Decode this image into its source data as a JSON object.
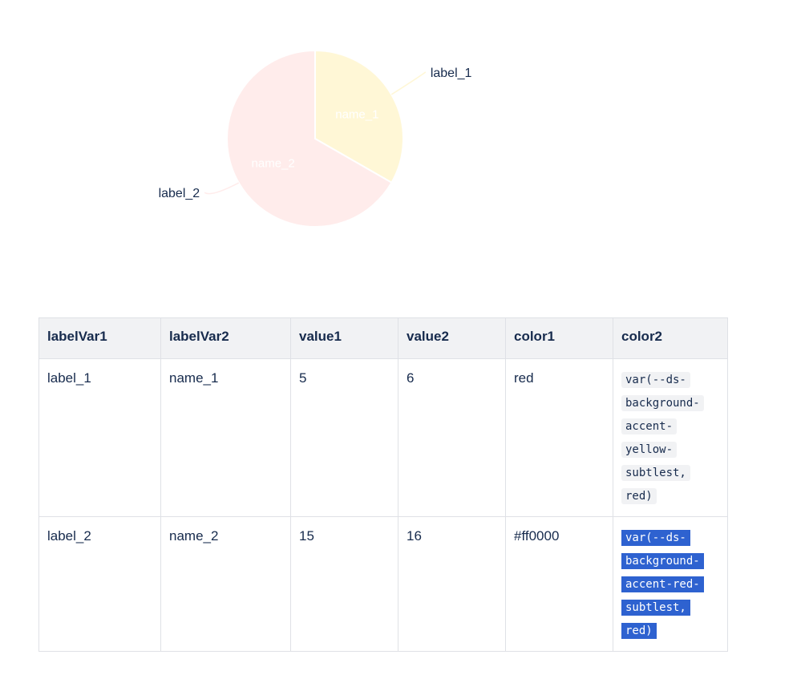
{
  "chart_data": {
    "type": "pie",
    "slices": [
      {
        "label": "label_1",
        "name": "name_1",
        "share": 33.3,
        "color": "#FFF7D6"
      },
      {
        "label": "label_2",
        "name": "name_2",
        "share": 66.7,
        "color": "#FFECEB"
      }
    ]
  },
  "table": {
    "headers": [
      "labelVar1",
      "labelVar2",
      "value1",
      "value2",
      "color1",
      "color2"
    ],
    "rows": [
      [
        "label_1",
        "name_1",
        "5",
        "6",
        "red",
        "var(--ds-background-accent-yellow-subtlest, red)"
      ],
      [
        "label_2",
        "name_2",
        "15",
        "16",
        "#ff0000",
        "var(--ds-background-accent-red-subtlest, red)"
      ]
    ],
    "selected_cell": "rows.1.5"
  }
}
